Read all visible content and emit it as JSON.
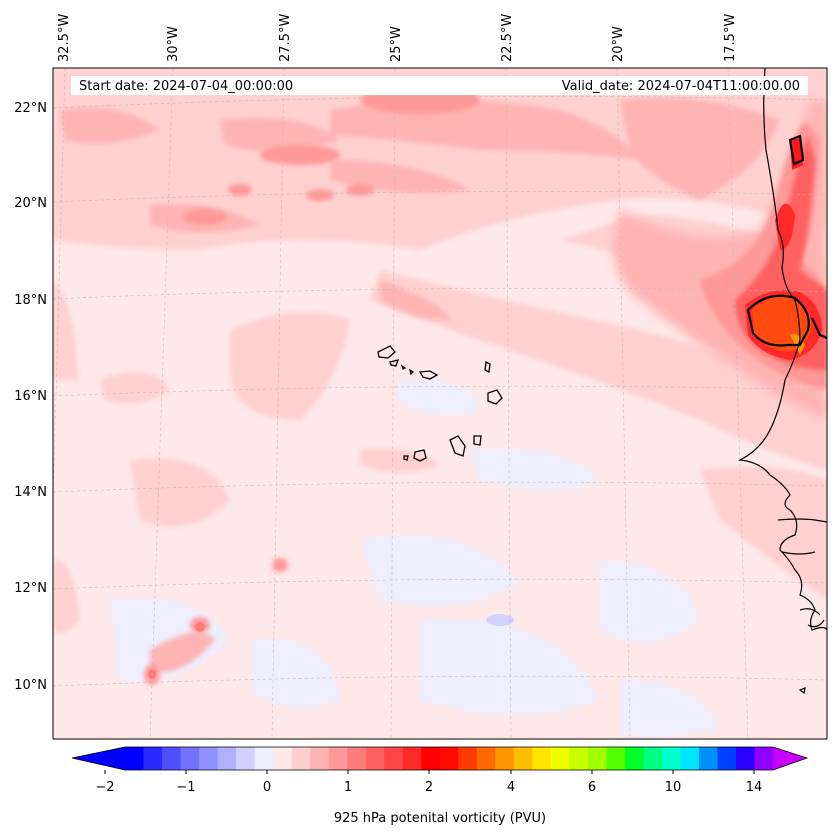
{
  "header": {
    "start_date": "Start date: 2024-07-04_00:00:00",
    "valid_date": "Valid_date: 2024-07-04T11:00:00.00"
  },
  "longitude_labels": [
    "32.5°W",
    "30°W",
    "27.5°W",
    "25°W",
    "22.5°W",
    "20°W",
    "17.5°W"
  ],
  "latitude_labels": [
    "22°N",
    "20°N",
    "18°N",
    "16°N",
    "14°N",
    "12°N",
    "10°N"
  ],
  "colorbar": {
    "label": "925 hPa potenital vorticity (PVU)",
    "ticks": [
      "−2",
      "−1",
      "0",
      "1",
      "2",
      "4",
      "6",
      "10",
      "14"
    ],
    "colors": [
      "#0000ff",
      "#2a2aff",
      "#4f4fff",
      "#7272ff",
      "#9191ff",
      "#b0b0ff",
      "#d1d1ff",
      "#efefff",
      "#ffe8e8",
      "#ffcfcf",
      "#ffb4b4",
      "#ff9898",
      "#ff7c7c",
      "#ff6060",
      "#ff4545",
      "#ff2929",
      "#ff0000",
      "#ff0a00",
      "#ff3c00",
      "#ff6a00",
      "#ff9500",
      "#ffbd00",
      "#ffe600",
      "#efff00",
      "#c8ff00",
      "#a0ff00",
      "#54ff00",
      "#00ff28",
      "#00ff82",
      "#00ffcc",
      "#00e6ff",
      "#0090ff",
      "#0040ff",
      "#2a00ff",
      "#9000ff"
    ],
    "under_color": "#0000ff",
    "over_color": "#c800ff"
  }
}
